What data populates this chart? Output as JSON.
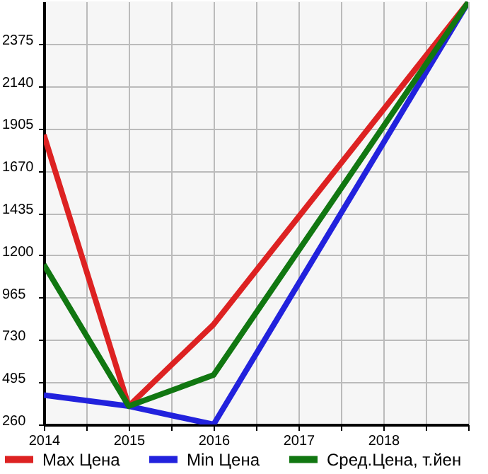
{
  "chart_data": {
    "type": "line",
    "x": [
      2014,
      2015,
      2016,
      2019
    ],
    "series": [
      {
        "name": "Max Цена",
        "color": "#dd2222",
        "values": [
          1869,
          362,
          816,
          2605
        ]
      },
      {
        "name": "Min Цена",
        "color": "#2222dd",
        "values": [
          423,
          362,
          260,
          2605
        ]
      },
      {
        "name": "Сред.Цена, т.йен",
        "color": "#117711",
        "values": [
          1148,
          362,
          535,
          2605
        ]
      }
    ],
    "xlim": [
      2014,
      2019
    ],
    "xticks": [
      2014,
      {
        "value": 2014.5,
        "label": null
      },
      2015,
      {
        "value": 2015.5,
        "label": null
      },
      2016,
      {
        "value": 2016.5,
        "label": null
      },
      2017,
      {
        "value": 2017.5,
        "label": null
      },
      2018,
      {
        "value": 2018.5,
        "label": null
      },
      {
        "value": 2019,
        "label": null
      }
    ],
    "ylim": [
      260,
      2610
    ],
    "yticks": [
      260,
      495,
      730,
      965,
      1200,
      1435,
      1670,
      1905,
      2140,
      2375
    ],
    "grid": true,
    "legend": "bottom",
    "marker": "none",
    "line_style": "solid"
  }
}
